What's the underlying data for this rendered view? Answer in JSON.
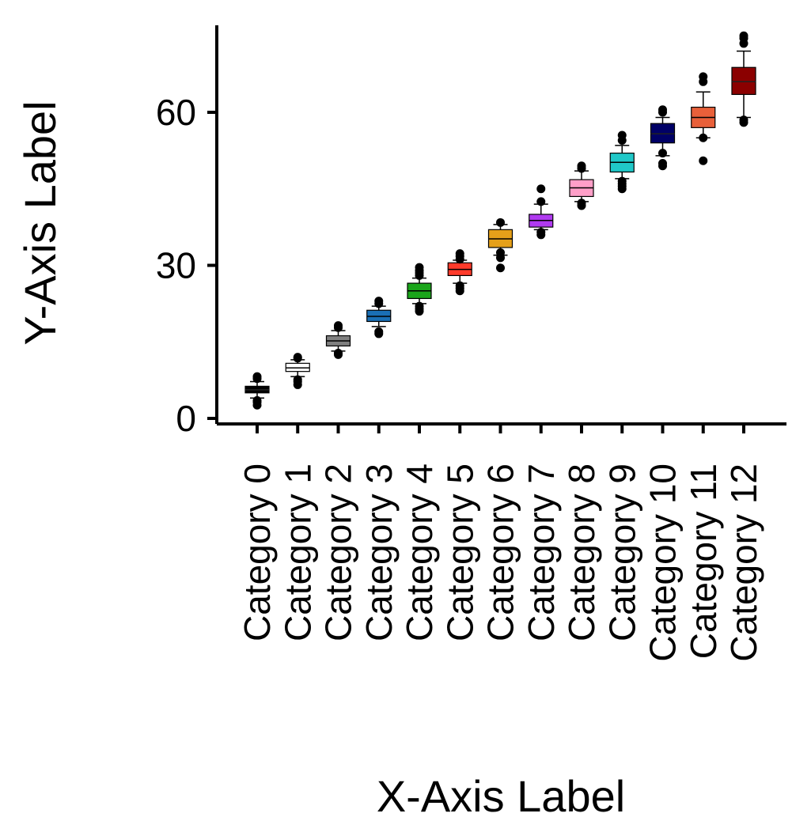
{
  "chart_data": {
    "type": "boxplot",
    "title": "",
    "xlabel": "X-Axis Label",
    "ylabel": "Y-Axis Label",
    "ylim": [
      -1,
      76
    ],
    "yticks": [
      0,
      30,
      60
    ],
    "grid": false,
    "legend": "none",
    "categories": [
      "Category 0",
      "Category 1",
      "Category 2",
      "Category 3",
      "Category 4",
      "Category 5",
      "Category 6",
      "Category 7",
      "Category 8",
      "Category 9",
      "Category 10",
      "Category 11",
      "Category 12"
    ],
    "boxes": [
      {
        "category": "Category 0",
        "color": "#000000",
        "whisker_low": 4,
        "q1": 5,
        "median": 5.6,
        "q3": 6.3,
        "whisker_high": 7.2,
        "outliers": [
          2.6,
          3.2,
          3.5,
          7.8,
          8.2
        ]
      },
      {
        "category": "Category 1",
        "color": "#ffffff",
        "whisker_low": 8.2,
        "q1": 9.2,
        "median": 9.9,
        "q3": 10.8,
        "whisker_high": 11.5,
        "outliers": [
          6.6,
          7.2,
          7.6,
          11.8,
          12.0
        ]
      },
      {
        "category": "Category 2",
        "color": "#808080",
        "whisker_low": 13.2,
        "q1": 14.2,
        "median": 15.2,
        "q3": 16.2,
        "whisker_high": 17.2,
        "outliers": [
          12.5,
          12.8,
          17.8,
          18.2
        ]
      },
      {
        "category": "Category 3",
        "color": "#1a6fb5",
        "whisker_low": 18.0,
        "q1": 19.0,
        "median": 20.0,
        "q3": 21.2,
        "whisker_high": 22.0,
        "outliers": [
          16.6,
          17.0,
          22.5,
          23.0
        ]
      },
      {
        "category": "Category 4",
        "color": "#1aa51a",
        "whisker_low": 22.5,
        "q1": 23.5,
        "median": 25.0,
        "q3": 26.5,
        "whisker_high": 27.5,
        "outliers": [
          21.0,
          21.5,
          22.0,
          28.0,
          28.5,
          29.0,
          29.6
        ]
      },
      {
        "category": "Category 5",
        "color": "#ff3a2a",
        "whisker_low": 26.5,
        "q1": 28.0,
        "median": 29.2,
        "q3": 30.5,
        "whisker_high": 31.0,
        "outliers": [
          25.0,
          25.5,
          26.0,
          31.2,
          31.8,
          32.3
        ]
      },
      {
        "category": "Category 6",
        "color": "#e5a01a",
        "whisker_low": 32.0,
        "q1": 33.5,
        "median": 35.2,
        "q3": 37.0,
        "whisker_high": 38.0,
        "outliers": [
          29.5,
          31.5,
          32.5,
          38.4
        ]
      },
      {
        "category": "Category 7",
        "color": "#b03af0",
        "whisker_low": 37.0,
        "q1": 37.5,
        "median": 38.8,
        "q3": 40.0,
        "whisker_high": 42.0,
        "outliers": [
          36.0,
          36.5,
          42.5,
          45.0
        ]
      },
      {
        "category": "Category 8",
        "color": "#ff9fc8",
        "whisker_low": 42.5,
        "q1": 43.5,
        "median": 45.2,
        "q3": 46.8,
        "whisker_high": 48.5,
        "outliers": [
          41.7,
          42.2,
          49.0,
          49.5
        ]
      },
      {
        "category": "Category 9",
        "color": "#20c8c8",
        "whisker_low": 47.0,
        "q1": 48.3,
        "median": 50.2,
        "q3": 52.0,
        "whisker_high": 53.5,
        "outliers": [
          45.0,
          45.5,
          46.0,
          46.5,
          54.5,
          55.5
        ]
      },
      {
        "category": "Category 10",
        "color": "#000066",
        "whisker_low": 51.5,
        "q1": 54.0,
        "median": 55.8,
        "q3": 57.8,
        "whisker_high": 59.0,
        "outliers": [
          49.5,
          50.0,
          52.0,
          60.0,
          60.5
        ]
      },
      {
        "category": "Category 11",
        "color": "#e8603a",
        "whisker_low": 55.0,
        "q1": 57.0,
        "median": 59.0,
        "q3": 61.0,
        "whisker_high": 64.0,
        "outliers": [
          50.5,
          55.0,
          66.0,
          67.0
        ]
      },
      {
        "category": "Category 12",
        "color": "#8b0000",
        "whisker_low": 59.0,
        "q1": 63.5,
        "median": 66.0,
        "q3": 68.8,
        "whisker_high": 72.0,
        "outliers": [
          58.0,
          58.5,
          73.5,
          74.5,
          75.0
        ]
      }
    ]
  }
}
